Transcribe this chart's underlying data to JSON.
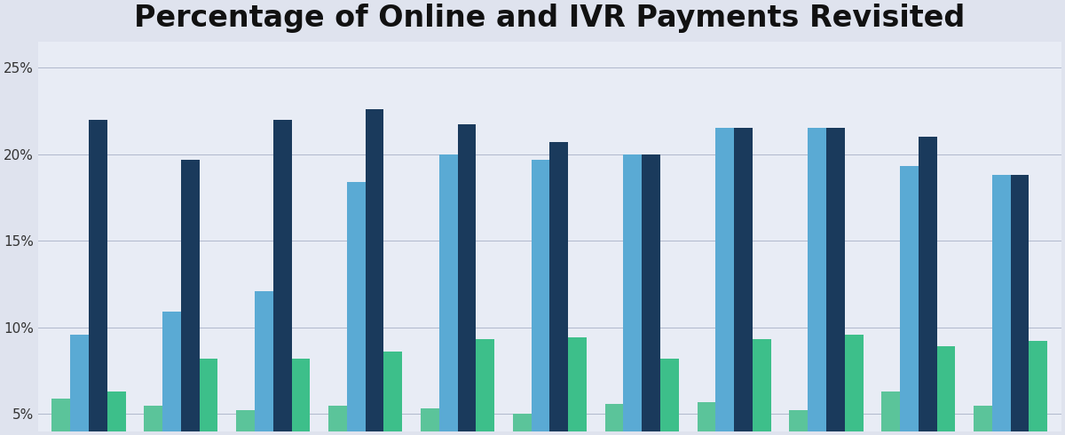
{
  "title": "Percentage of Online and IVR Payments Revisited",
  "background_color": "#dfe3ee",
  "plot_bg_color": "#e8ecf5",
  "bar_colors": [
    "#5bc49a",
    "#5aaad4",
    "#1a3a5c",
    "#3dbf8a"
  ],
  "groups": 11,
  "bar_width": 0.2,
  "ylim": [
    0.04,
    0.265
  ],
  "yticks": [
    0.05,
    0.1,
    0.15,
    0.2,
    0.25
  ],
  "ytick_labels": [
    "5%",
    "10%",
    "15%",
    "20%",
    "25%"
  ],
  "series": [
    [
      0.059,
      0.055,
      0.052,
      0.055,
      0.053,
      0.05,
      0.056,
      0.057,
      0.052,
      0.063,
      0.055
    ],
    [
      0.096,
      0.109,
      0.121,
      0.184,
      0.2,
      0.197,
      0.2,
      0.215,
      0.215,
      0.193,
      0.188
    ],
    [
      0.22,
      0.197,
      0.22,
      0.226,
      0.217,
      0.207,
      0.2,
      0.215,
      0.215,
      0.21,
      0.188
    ],
    [
      0.063,
      0.082,
      0.082,
      0.086,
      0.093,
      0.094,
      0.082,
      0.093,
      0.096,
      0.089,
      0.092
    ]
  ]
}
